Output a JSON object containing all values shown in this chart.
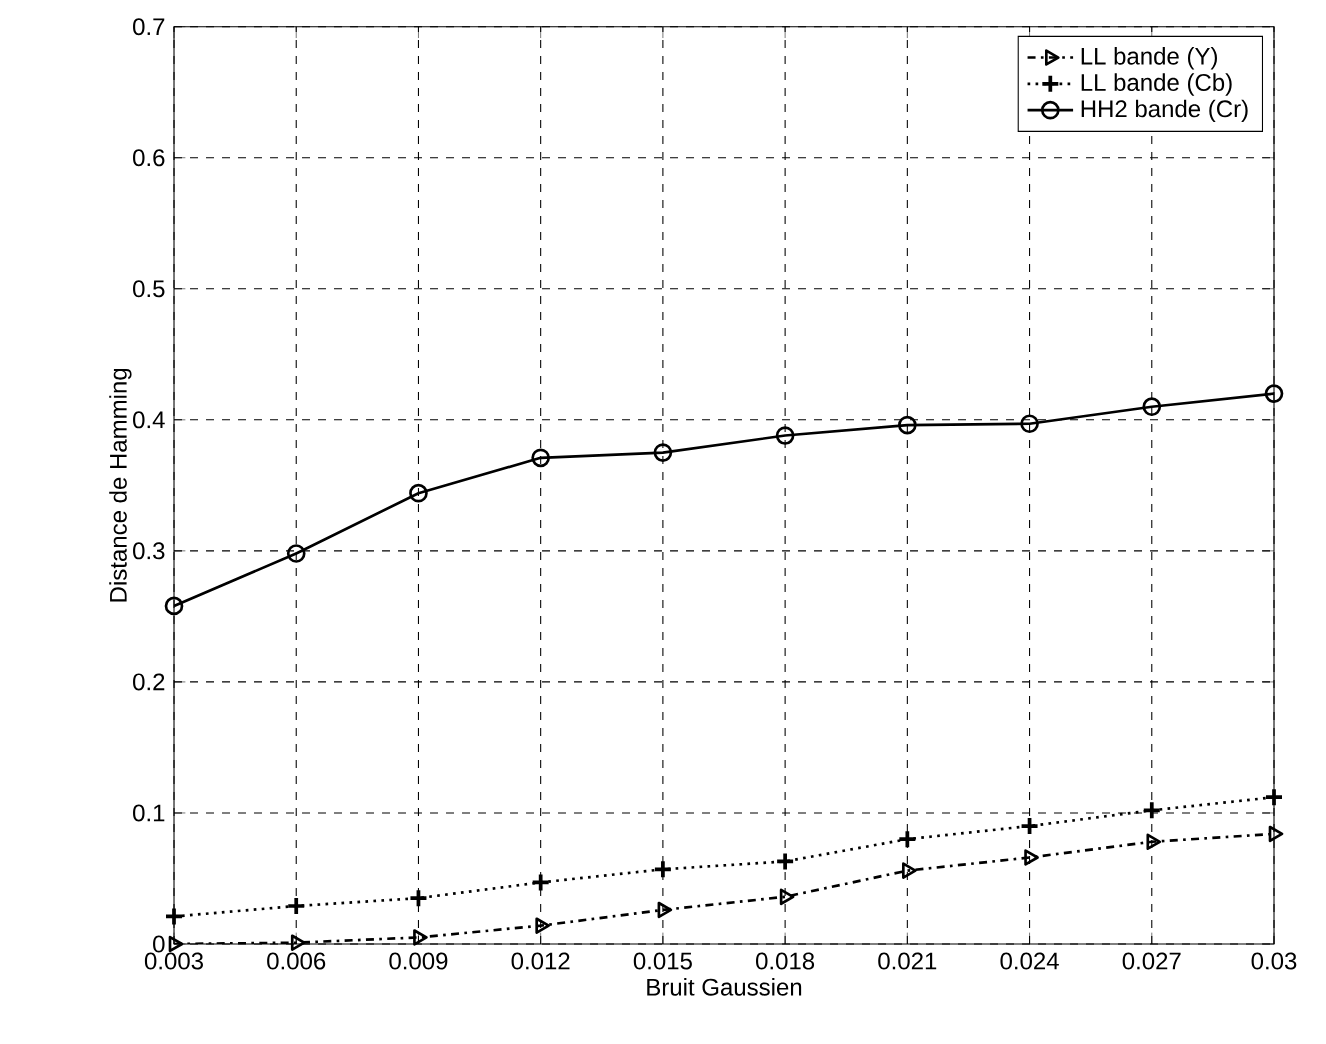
{
  "chart_data": {
    "type": "line",
    "xlabel": "Bruit Gaussien",
    "ylabel": "Distance de Hamming",
    "x": [
      0.003,
      0.006,
      0.009,
      0.012,
      0.015,
      0.018,
      0.021,
      0.024,
      0.027,
      0.03
    ],
    "series": [
      {
        "name": "LL bande (Y)",
        "color": "#000000",
        "marker": "triangle",
        "line_style": "dashed",
        "values": [
          0.0,
          0.001,
          0.005,
          0.014,
          0.026,
          0.036,
          0.056,
          0.066,
          0.078,
          0.084
        ]
      },
      {
        "name": "LL bande (Cb)",
        "color": "#000000",
        "marker": "cross",
        "line_style": "dotted",
        "values": [
          0.021,
          0.029,
          0.035,
          0.047,
          0.057,
          0.063,
          0.08,
          0.09,
          0.102,
          0.112
        ]
      },
      {
        "name": "HH2 bande (Cr)",
        "color": "#000000",
        "marker": "circle",
        "line_style": "solid",
        "values": [
          0.258,
          0.298,
          0.344,
          0.371,
          0.375,
          0.388,
          0.396,
          0.397,
          0.41,
          0.42
        ]
      }
    ],
    "xlim": [
      0.003,
      0.03
    ],
    "xticks": [
      0.003,
      0.006,
      0.009,
      0.012,
      0.015,
      0.018,
      0.021,
      0.024,
      0.027,
      0.03
    ],
    "ylim": [
      0,
      0.7
    ],
    "yticks": [
      0,
      0.1,
      0.2,
      0.3,
      0.4,
      0.5,
      0.6,
      0.7
    ],
    "grid": true,
    "legend": "top right"
  }
}
